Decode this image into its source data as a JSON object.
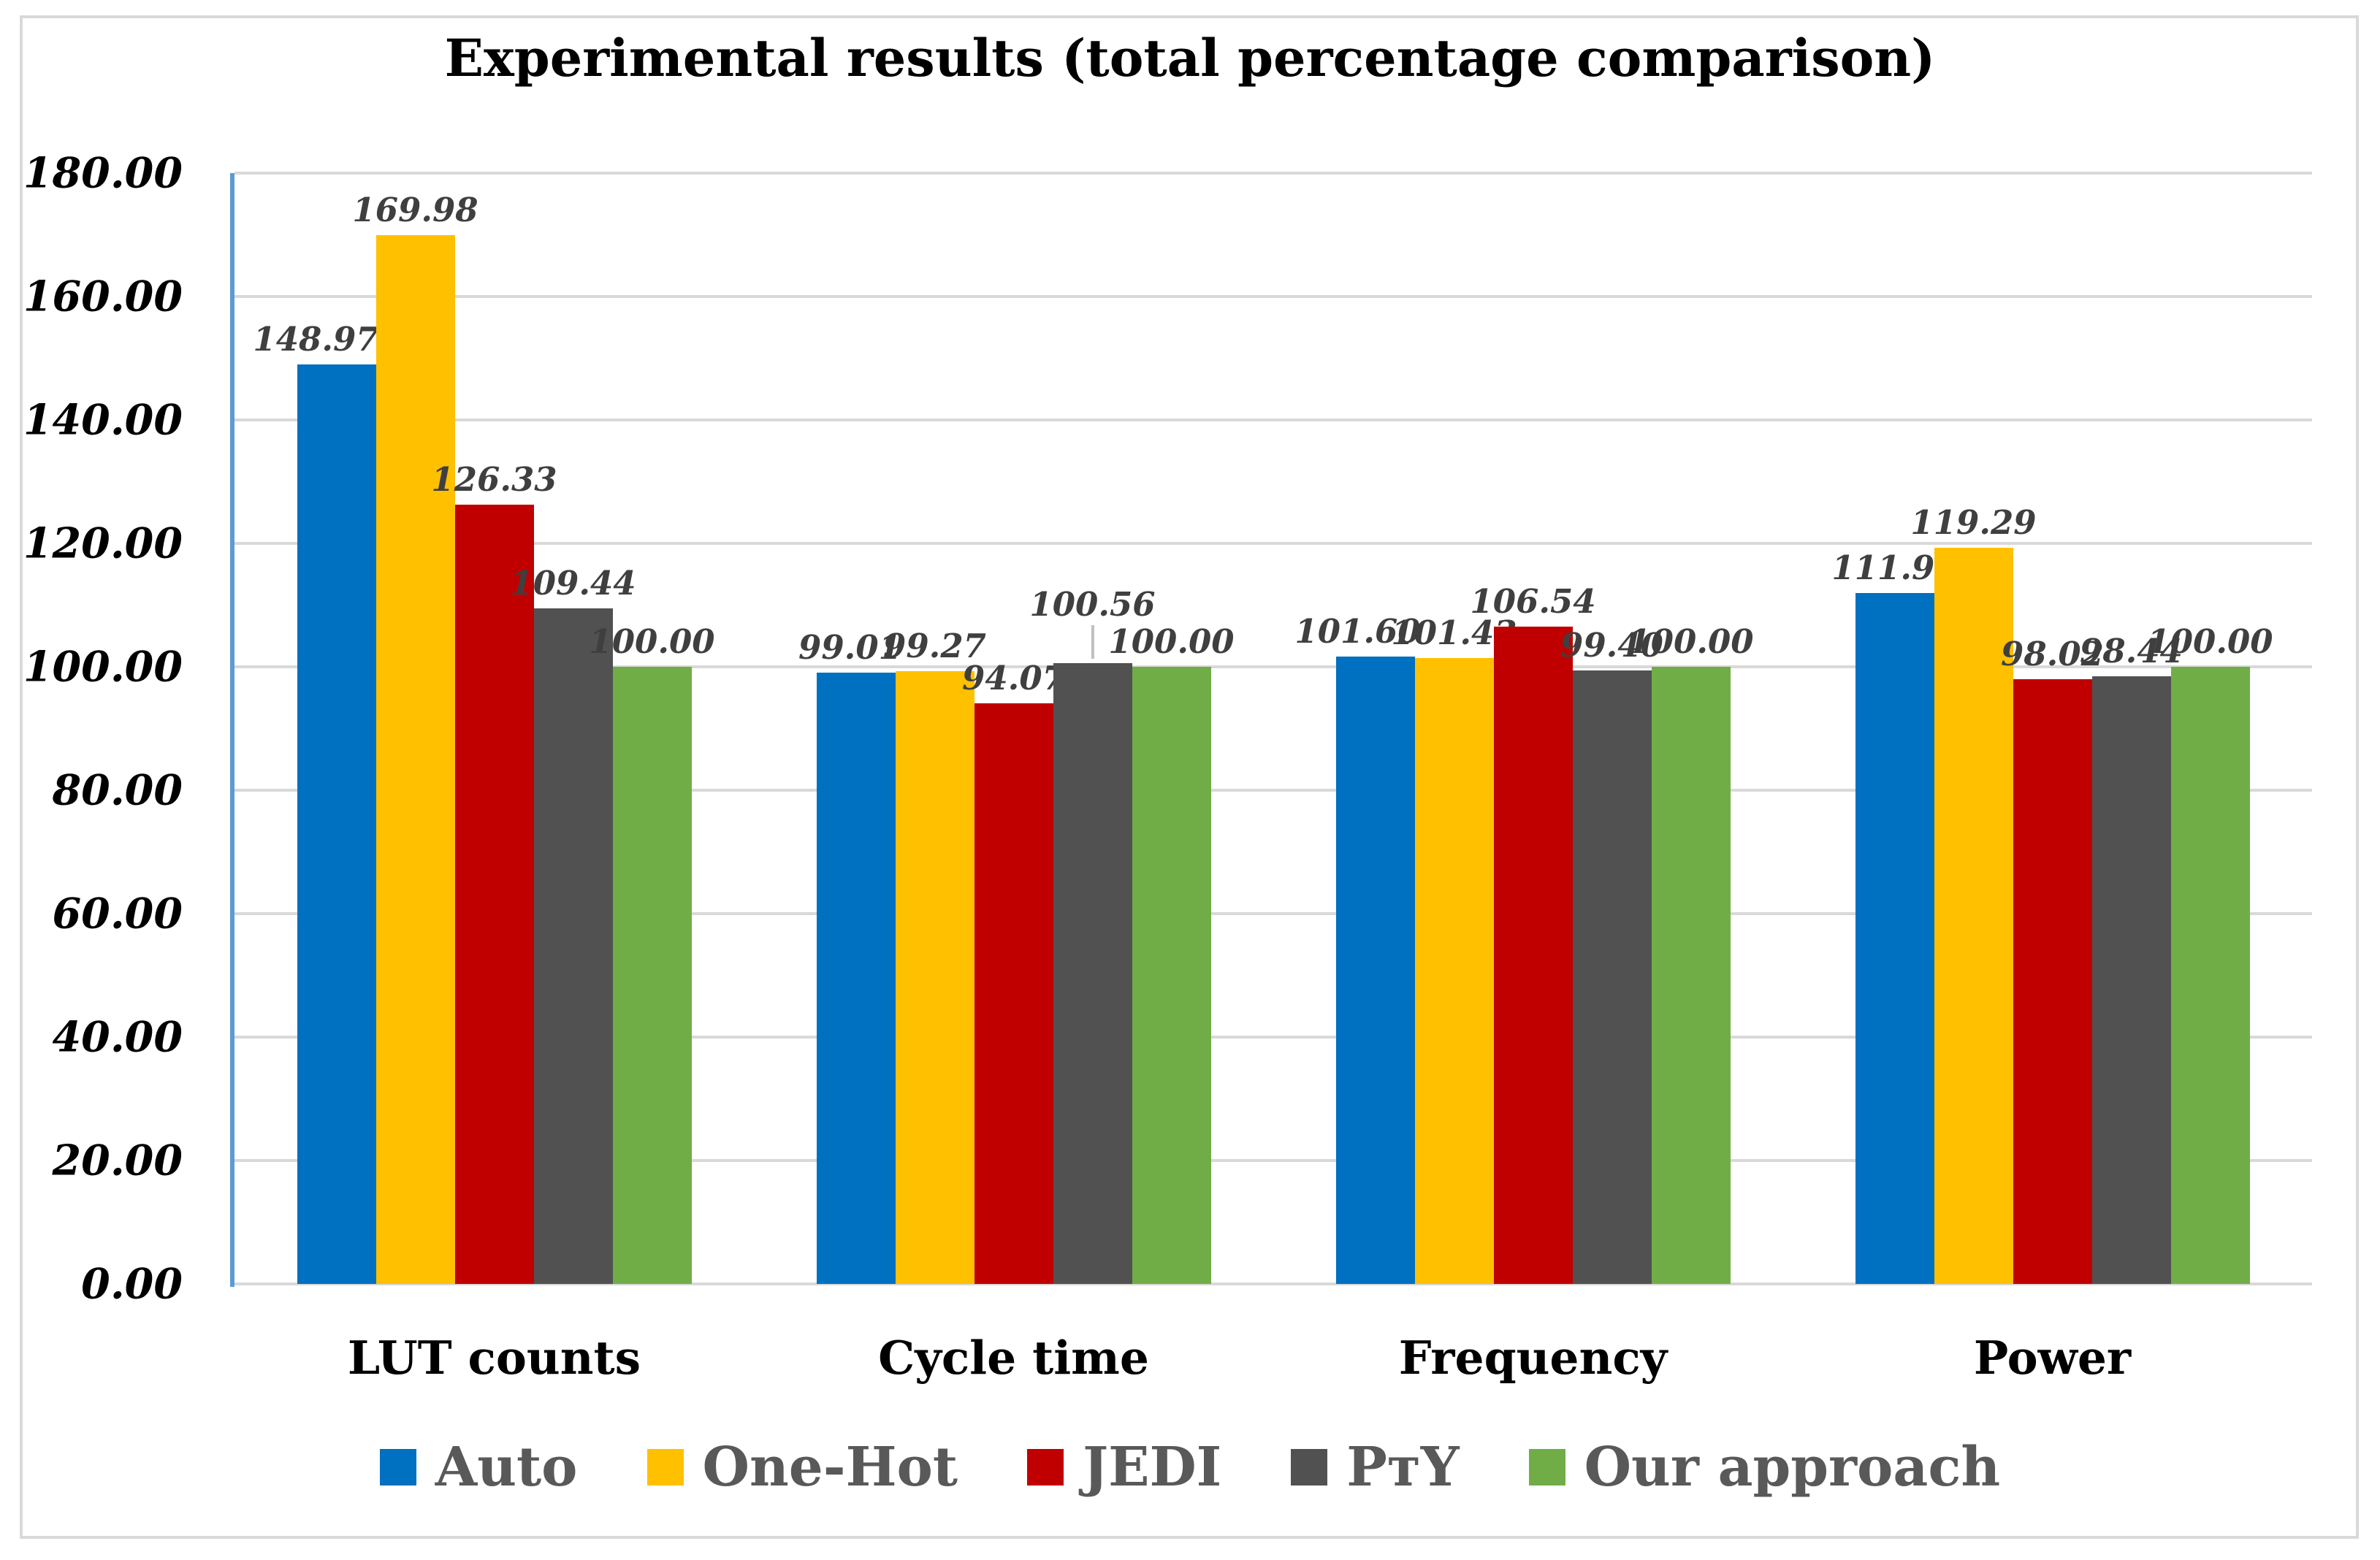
{
  "chart_data": {
    "type": "bar",
    "title": "Experimental results (total percentage comparison)",
    "categories": [
      "LUT counts",
      "Cycle time",
      "Frequency",
      "Power"
    ],
    "series": [
      {
        "name": "Auto",
        "color": "#0070C0",
        "values": [
          148.97,
          99.01,
          101.6,
          111.95
        ],
        "labels": [
          "148.97",
          "99.01",
          "101.60",
          "111.95"
        ]
      },
      {
        "name": "One-Hot",
        "color": "#FFC000",
        "values": [
          169.98,
          99.27,
          101.43,
          119.29
        ],
        "labels": [
          "169.98",
          "99.27",
          "101.43",
          "119.29"
        ]
      },
      {
        "name": "JEDI",
        "color": "#C00000",
        "values": [
          126.33,
          94.07,
          106.54,
          98.02
        ],
        "labels": [
          "126.33",
          "94.07",
          "106.54",
          "98.02"
        ]
      },
      {
        "name": "PᴛY",
        "color": "#515151",
        "values": [
          109.44,
          100.56,
          99.4,
          98.44
        ],
        "labels": [
          "109.44",
          "100.56",
          "99.40",
          "98.44"
        ]
      },
      {
        "name": "Our approach",
        "color": "#70AD47",
        "values": [
          100.0,
          100.0,
          100.0,
          100.0
        ],
        "labels": [
          "100.00",
          "100.00",
          "100.00",
          "100.00"
        ]
      }
    ],
    "ylim": [
      0,
      180
    ],
    "ytick_step": 20,
    "ytick_labels": [
      "0.00",
      "20.00",
      "40.00",
      "60.00",
      "80.00",
      "100.00",
      "120.00",
      "140.00",
      "160.00",
      "180.00"
    ],
    "grid": true,
    "legend_position": "bottom",
    "colors": {
      "gridline": "#D9D9D9",
      "axis_line": "#5B9BD5",
      "data_label": "#3F3F3F",
      "legend_text": "#595959",
      "frame_border": "#D9D9D9",
      "leader_line": "#BFBFBF"
    },
    "label_adjust": {
      "dx": {
        "LUT counts|Auto": -28,
        "Frequency|Auto": -24,
        "Cycle time|Auto": -8
      },
      "callout": {
        "category": "Cycle time",
        "series": "PᴛY",
        "raise": 46
      }
    }
  }
}
